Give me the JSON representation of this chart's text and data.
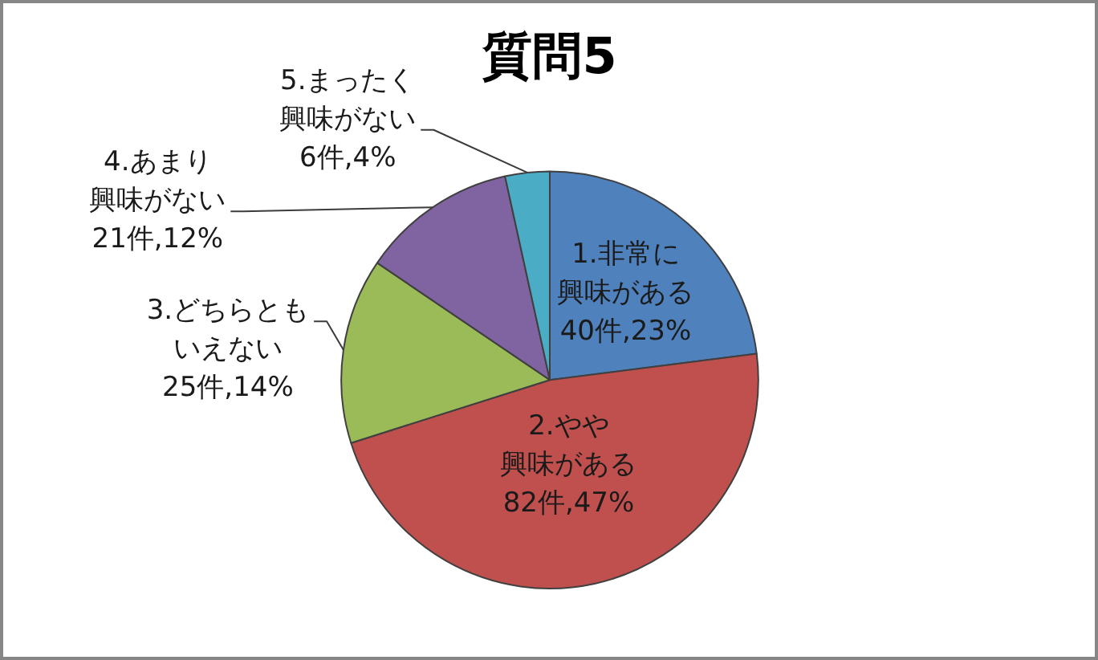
{
  "chart_data": {
    "type": "pie",
    "title": "質問5",
    "categories": [
      "1.非常に興味がある",
      "2.やや興味がある",
      "3.どちらともいえない",
      "4.あまり興味がない",
      "5.まったく興味がない"
    ],
    "values": [
      40,
      82,
      25,
      21,
      6
    ],
    "colors": [
      "#4f81bd",
      "#c0504d",
      "#9bbb59",
      "#8064a2",
      "#4bacc6"
    ],
    "value_labels": [
      "40件,23%",
      "82件,47%",
      "25件,14%",
      "21件,12%",
      "6件,4%"
    ]
  }
}
